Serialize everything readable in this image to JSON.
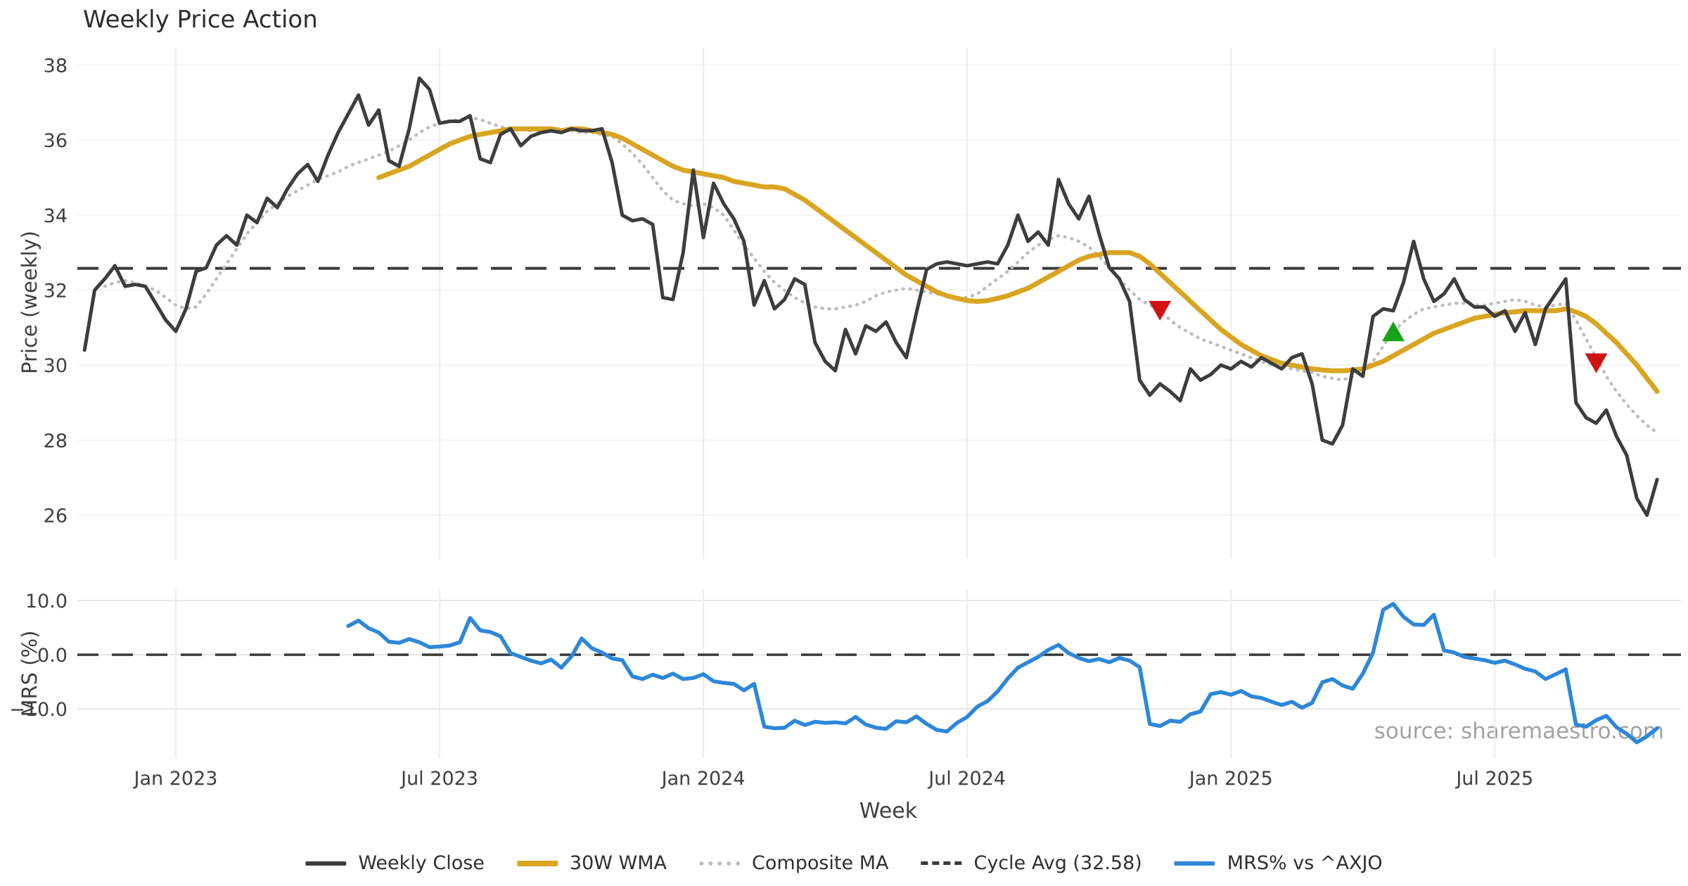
{
  "title": "Weekly Price Action",
  "source": "source: sharemaestro.com",
  "axes": {
    "price_label": "Price (weekly)",
    "mrs_label": "MRS (%)",
    "x_label": "Week"
  },
  "colors": {
    "weekly_close": "#3d3d3d",
    "wma": "#d9a521",
    "composite": "#bdbdbd",
    "cycle_avg": "#3a3a3a",
    "mrs": "#2d87d9",
    "sell_marker": "#cf1312",
    "buy_marker": "#17a217",
    "grid_vertical": "#ececec",
    "grid_horizontal_main": "#f5f5f5",
    "grid_horizontal_mrs": "#e7e7e7",
    "tick_text": "#3f3f3f"
  },
  "legend": {
    "items": [
      {
        "label": "Weekly Close",
        "color": "#3d3d3d",
        "style": "solid"
      },
      {
        "label": "30W WMA",
        "color": "#d9a521",
        "style": "solid"
      },
      {
        "label": "Composite MA",
        "color": "#bdbdbd",
        "style": "dotted"
      },
      {
        "label": "Cycle Avg (32.58)",
        "color": "#3a3a3a",
        "style": "dashed"
      },
      {
        "label": "MRS% vs ^AXJO",
        "color": "#2d87d9",
        "style": "solid"
      }
    ]
  },
  "chart_data": [
    {
      "panel": "price",
      "type": "line",
      "title": "Weekly Price Action",
      "ylabel": "Price (weekly)",
      "ylim": [
        24.83,
        38.46
      ],
      "yticks": [
        26,
        28,
        30,
        32,
        34,
        36,
        38
      ],
      "cycle_avg": 32.58,
      "weeks_total": 156,
      "xticks": [
        {
          "week": 9,
          "label": "Jan 2023"
        },
        {
          "week": 35,
          "label": "Jul 2023"
        },
        {
          "week": 61,
          "label": "Jan 2024"
        },
        {
          "week": 87,
          "label": "Jul 2024"
        },
        {
          "week": 113,
          "label": "Jan 2025"
        },
        {
          "week": 139,
          "label": "Jul 2025"
        }
      ],
      "series": [
        {
          "name": "Weekly Close",
          "values": [
            30.4,
            32.0,
            32.3,
            32.65,
            32.1,
            32.15,
            32.1,
            31.65,
            31.2,
            30.9,
            31.5,
            32.5,
            32.6,
            33.2,
            33.45,
            33.2,
            34.0,
            33.8,
            34.45,
            34.2,
            34.7,
            35.1,
            35.35,
            34.9,
            35.6,
            36.2,
            36.7,
            37.2,
            36.4,
            36.8,
            35.45,
            35.3,
            36.3,
            37.65,
            37.35,
            36.45,
            36.5,
            36.5,
            36.65,
            35.5,
            35.4,
            36.15,
            36.3,
            35.85,
            36.1,
            36.2,
            36.25,
            36.2,
            36.3,
            36.25,
            36.25,
            36.3,
            35.4,
            34.0,
            33.85,
            33.9,
            33.75,
            31.8,
            31.75,
            33.0,
            35.2,
            33.4,
            34.85,
            34.3,
            33.9,
            33.3,
            31.6,
            32.25,
            31.5,
            31.75,
            32.3,
            32.15,
            30.6,
            30.1,
            29.85,
            30.95,
            30.3,
            31.05,
            30.9,
            31.15,
            30.6,
            30.2,
            31.4,
            32.55,
            32.7,
            32.75,
            32.7,
            32.65,
            32.7,
            32.75,
            32.7,
            33.2,
            34.0,
            33.3,
            33.55,
            33.2,
            34.95,
            34.3,
            33.9,
            34.5,
            33.5,
            32.6,
            32.3,
            31.7,
            29.6,
            29.2,
            29.5,
            29.3,
            29.05,
            29.9,
            29.6,
            29.75,
            30.0,
            29.9,
            30.1,
            29.95,
            30.2,
            30.05,
            29.9,
            30.2,
            30.3,
            29.5,
            28.0,
            27.9,
            28.4,
            29.9,
            29.7,
            31.3,
            31.5,
            31.45,
            32.2,
            33.3,
            32.3,
            31.7,
            31.9,
            32.3,
            31.75,
            31.55,
            31.55,
            31.3,
            31.45,
            30.9,
            31.4,
            30.55,
            31.5,
            31.9,
            32.3,
            29.0,
            28.6,
            28.45,
            28.8,
            28.1,
            27.6,
            26.45,
            26.0,
            26.95
          ]
        },
        {
          "name": "30W WMA",
          "values": [
            null,
            null,
            null,
            null,
            null,
            null,
            null,
            null,
            null,
            null,
            null,
            null,
            null,
            null,
            null,
            null,
            null,
            null,
            null,
            null,
            null,
            null,
            null,
            null,
            null,
            null,
            null,
            null,
            null,
            35.0,
            35.1,
            35.2,
            35.3,
            35.45,
            35.6,
            35.75,
            35.9,
            36.0,
            36.1,
            36.15,
            36.2,
            36.25,
            36.3,
            36.3,
            36.3,
            36.3,
            36.3,
            36.25,
            36.3,
            36.3,
            36.25,
            36.2,
            36.15,
            36.05,
            35.9,
            35.75,
            35.6,
            35.45,
            35.3,
            35.2,
            35.15,
            35.1,
            35.05,
            35.0,
            34.9,
            34.85,
            34.8,
            34.75,
            34.75,
            34.7,
            34.55,
            34.4,
            34.2,
            34.0,
            33.8,
            33.6,
            33.4,
            33.2,
            33.0,
            32.8,
            32.6,
            32.4,
            32.25,
            32.1,
            31.95,
            31.85,
            31.78,
            31.72,
            31.7,
            31.72,
            31.78,
            31.85,
            31.95,
            32.05,
            32.2,
            32.35,
            32.5,
            32.65,
            32.8,
            32.9,
            32.95,
            33.0,
            33.0,
            33.0,
            32.9,
            32.7,
            32.45,
            32.2,
            31.95,
            31.7,
            31.45,
            31.2,
            30.95,
            30.75,
            30.55,
            30.4,
            30.25,
            30.15,
            30.05,
            30.0,
            29.95,
            29.9,
            29.87,
            29.85,
            29.85,
            29.87,
            29.9,
            30.0,
            30.1,
            30.25,
            30.4,
            30.55,
            30.7,
            30.85,
            30.95,
            31.05,
            31.15,
            31.25,
            31.3,
            31.35,
            31.4,
            31.42,
            31.45,
            31.45,
            31.45,
            31.45,
            31.5,
            31.42,
            31.3,
            31.1,
            30.85,
            30.6,
            30.3,
            30.0,
            29.65,
            29.3
          ]
        },
        {
          "name": "Composite MA",
          "values": [
            null,
            null,
            32.1,
            32.2,
            32.25,
            32.2,
            32.1,
            32.0,
            31.8,
            31.6,
            31.5,
            31.55,
            31.9,
            32.3,
            32.7,
            33.1,
            33.5,
            33.8,
            34.1,
            34.3,
            34.5,
            34.65,
            34.8,
            34.95,
            35.05,
            35.15,
            35.3,
            35.4,
            35.5,
            35.6,
            35.7,
            35.85,
            36.0,
            36.2,
            36.35,
            36.45,
            36.5,
            36.55,
            36.6,
            36.55,
            36.45,
            36.35,
            36.3,
            36.3,
            36.25,
            36.25,
            36.3,
            36.3,
            36.25,
            36.2,
            36.2,
            36.15,
            36.1,
            35.9,
            35.65,
            35.35,
            35.0,
            34.65,
            34.4,
            34.3,
            34.25,
            34.3,
            34.2,
            34.0,
            33.6,
            33.2,
            32.85,
            32.5,
            32.2,
            32.0,
            31.8,
            31.65,
            31.55,
            31.5,
            31.5,
            31.55,
            31.6,
            31.7,
            31.85,
            31.95,
            32.0,
            32.05,
            32.0,
            31.95,
            31.9,
            31.85,
            31.8,
            31.8,
            31.9,
            32.1,
            32.3,
            32.5,
            32.75,
            33.0,
            33.2,
            33.35,
            33.45,
            33.4,
            33.3,
            33.15,
            32.9,
            32.6,
            32.3,
            32.0,
            31.75,
            31.6,
            31.45,
            31.2,
            31.0,
            30.85,
            30.7,
            30.6,
            30.5,
            30.4,
            30.3,
            30.2,
            30.1,
            30.0,
            29.95,
            29.9,
            29.85,
            29.8,
            29.7,
            29.65,
            29.6,
            29.7,
            29.85,
            30.1,
            30.5,
            30.9,
            31.15,
            31.35,
            31.5,
            31.55,
            31.6,
            31.65,
            31.65,
            31.6,
            31.6,
            31.65,
            31.7,
            31.75,
            31.7,
            31.6,
            31.55,
            31.6,
            31.65,
            31.2,
            30.7,
            30.2,
            29.7,
            29.3,
            28.95,
            28.65,
            28.4,
            28.2
          ]
        }
      ],
      "markers": [
        {
          "shape": "triangle-down",
          "week": 106,
          "value": 31.45,
          "color": "#cf1312",
          "name": "sell-signal-marker-1"
        },
        {
          "shape": "triangle-up",
          "week": 129,
          "value": 30.9,
          "color": "#17a217",
          "name": "buy-signal-marker"
        },
        {
          "shape": "triangle-down",
          "week": 149,
          "value": 30.05,
          "color": "#cf1312",
          "name": "sell-signal-marker-2"
        }
      ]
    },
    {
      "panel": "mrs",
      "type": "line",
      "ylabel": "MRS (%)",
      "ylim": [
        -19.1,
        12.1
      ],
      "yticks": [
        10,
        0,
        -10
      ],
      "ytick_labels": [
        "10.0",
        "0.0",
        "−10.0"
      ],
      "zero_dashed_line": 0.0,
      "series": [
        {
          "name": "MRS% vs ^AXJO",
          "values": [
            null,
            null,
            null,
            null,
            null,
            null,
            null,
            null,
            null,
            null,
            null,
            null,
            null,
            null,
            null,
            null,
            null,
            null,
            null,
            null,
            null,
            null,
            null,
            null,
            null,
            null,
            5.3,
            6.3,
            4.9,
            4.1,
            2.4,
            2.2,
            2.9,
            2.3,
            1.4,
            1.5,
            1.7,
            2.3,
            6.8,
            4.5,
            4.2,
            3.4,
            0.3,
            -0.4,
            -1.1,
            -1.6,
            -0.9,
            -2.4,
            -0.3,
            3.0,
            1.2,
            0.4,
            -0.7,
            -1.0,
            -4.0,
            -4.5,
            -3.7,
            -4.3,
            -3.5,
            -4.5,
            -4.3,
            -3.6,
            -4.9,
            -5.2,
            -5.4,
            -6.6,
            -5.4,
            -13.3,
            -13.6,
            -13.5,
            -12.2,
            -13.0,
            -12.4,
            -12.6,
            -12.5,
            -12.7,
            -11.5,
            -12.9,
            -13.5,
            -13.7,
            -12.3,
            -12.5,
            -11.4,
            -12.8,
            -13.9,
            -14.2,
            -12.6,
            -11.5,
            -9.6,
            -8.6,
            -6.8,
            -4.4,
            -2.4,
            -1.4,
            -0.4,
            0.9,
            1.8,
            0.3,
            -0.6,
            -1.2,
            -0.8,
            -1.4,
            -0.6,
            -1.1,
            -2.3,
            -12.8,
            -13.2,
            -12.2,
            -12.4,
            -11.0,
            -10.5,
            -7.3,
            -6.9,
            -7.4,
            -6.7,
            -7.7,
            -8.0,
            -8.7,
            -9.3,
            -8.7,
            -9.8,
            -8.9,
            -5.1,
            -4.5,
            -5.7,
            -6.3,
            -3.5,
            0.4,
            8.3,
            9.4,
            7.0,
            5.6,
            5.5,
            7.4,
            0.8,
            0.4,
            -0.4,
            -0.7,
            -1.0,
            -1.5,
            -1.1,
            -1.8,
            -2.6,
            -3.1,
            -4.5,
            -3.6,
            -2.7,
            -12.9,
            -13.3,
            -12.1,
            -11.3,
            -13.4,
            -14.6,
            -16.2,
            -15.1,
            -13.6
          ]
        }
      ]
    }
  ]
}
